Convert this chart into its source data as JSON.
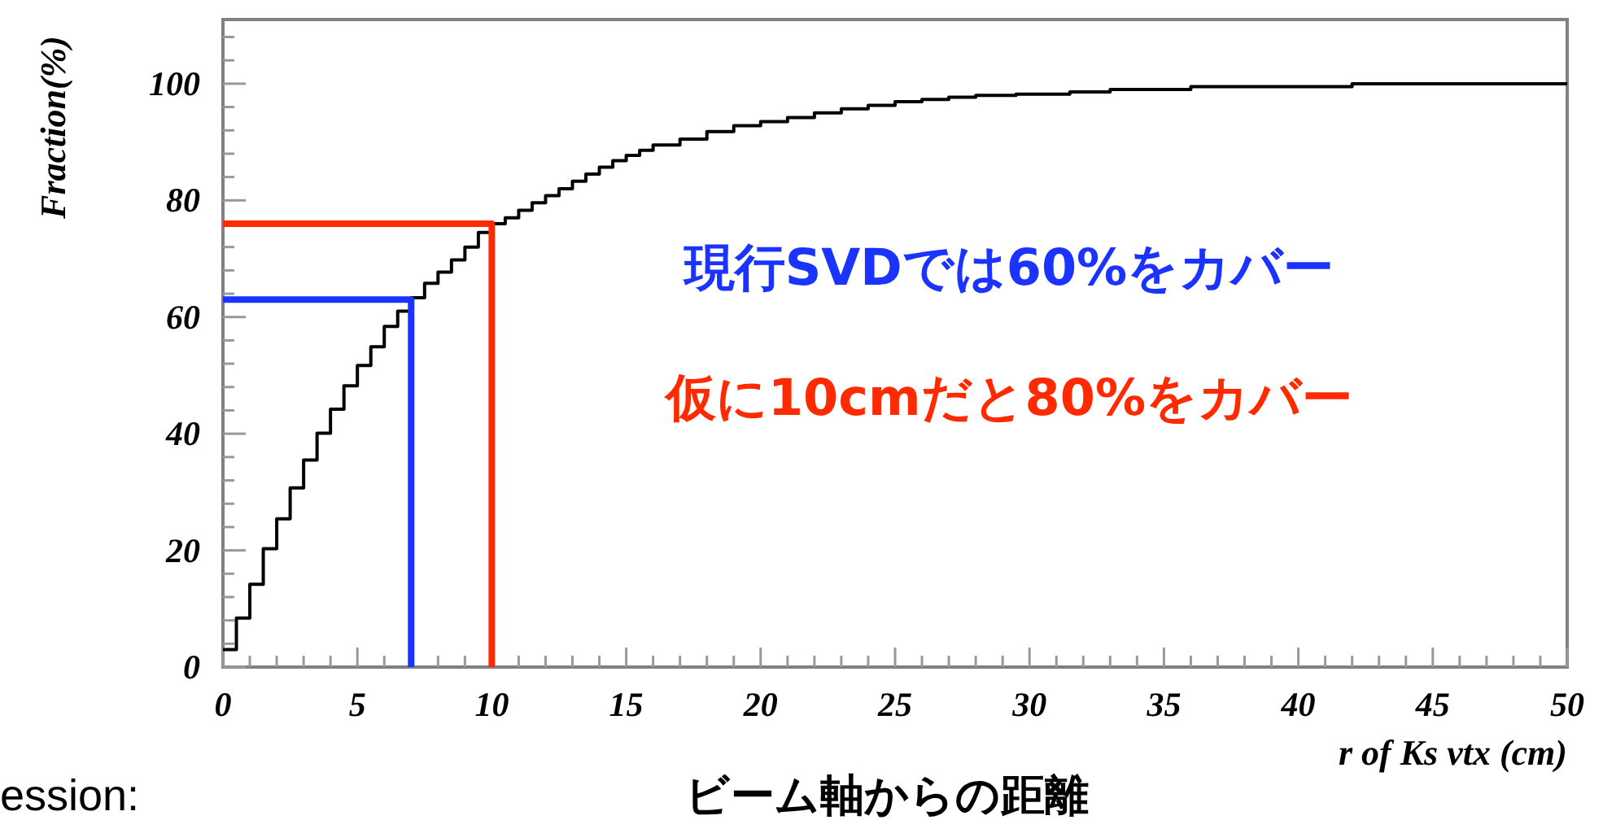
{
  "chart_data": {
    "type": "step",
    "xlabel": "r of Ks vtx (cm)",
    "ylabel": "Fraction(%)",
    "xlim": [
      0,
      50
    ],
    "ylim": [
      0,
      111
    ],
    "xticks": [
      0,
      {
        "value": 1,
        "label": null
      },
      {
        "value": 2,
        "label": null
      },
      {
        "value": 3,
        "label": null
      },
      {
        "value": 4,
        "label": null
      },
      5,
      {
        "value": 6,
        "label": null
      },
      {
        "value": 7,
        "label": null
      },
      {
        "value": 8,
        "label": null
      },
      {
        "value": 9,
        "label": null
      },
      10,
      {
        "value": 11,
        "label": null
      },
      {
        "value": 12,
        "label": null
      },
      {
        "value": 13,
        "label": null
      },
      {
        "value": 14,
        "label": null
      },
      15,
      {
        "value": 16,
        "label": null
      },
      {
        "value": 17,
        "label": null
      },
      {
        "value": 18,
        "label": null
      },
      {
        "value": 19,
        "label": null
      },
      20,
      {
        "value": 21,
        "label": null
      },
      {
        "value": 22,
        "label": null
      },
      {
        "value": 23,
        "label": null
      },
      {
        "value": 24,
        "label": null
      },
      25,
      {
        "value": 26,
        "label": null
      },
      {
        "value": 27,
        "label": null
      },
      {
        "value": 28,
        "label": null
      },
      {
        "value": 29,
        "label": null
      },
      30,
      {
        "value": 31,
        "label": null
      },
      {
        "value": 32,
        "label": null
      },
      {
        "value": 33,
        "label": null
      },
      {
        "value": 34,
        "label": null
      },
      35,
      {
        "value": 36,
        "label": null
      },
      {
        "value": 37,
        "label": null
      },
      {
        "value": 38,
        "label": null
      },
      {
        "value": 39,
        "label": null
      },
      40,
      {
        "value": 41,
        "label": null
      },
      {
        "value": 42,
        "label": null
      },
      {
        "value": 43,
        "label": null
      },
      {
        "value": 44,
        "label": null
      },
      45,
      {
        "value": 46,
        "label": null
      },
      {
        "value": 47,
        "label": null
      },
      {
        "value": 48,
        "label": null
      },
      {
        "value": 49,
        "label": null
      },
      50
    ],
    "yticks": [
      0,
      {
        "value": 4,
        "label": null
      },
      {
        "value": 8,
        "label": null
      },
      {
        "value": 12,
        "label": null
      },
      {
        "value": 16,
        "label": null
      },
      20,
      {
        "value": 24,
        "label": null
      },
      {
        "value": 28,
        "label": null
      },
      {
        "value": 32,
        "label": null
      },
      {
        "value": 36,
        "label": null
      },
      40,
      {
        "value": 44,
        "label": null
      },
      {
        "value": 48,
        "label": null
      },
      {
        "value": 52,
        "label": null
      },
      {
        "value": 56,
        "label": null
      },
      60,
      {
        "value": 64,
        "label": null
      },
      {
        "value": 68,
        "label": null
      },
      {
        "value": 72,
        "label": null
      },
      {
        "value": 76,
        "label": null
      },
      80,
      {
        "value": 84,
        "label": null
      },
      {
        "value": 88,
        "label": null
      },
      {
        "value": 92,
        "label": null
      },
      {
        "value": 96,
        "label": null
      },
      100,
      {
        "value": 104,
        "label": null
      },
      {
        "value": 108,
        "label": null
      }
    ],
    "series": [
      {
        "color": "#000000",
        "x": [
          0,
          0.5,
          1,
          1.5,
          2,
          2.5,
          3,
          3.5,
          4,
          4.5,
          5,
          5.5,
          6,
          6.5,
          7,
          7.5,
          8,
          8.5,
          9,
          9.5,
          10,
          10.5,
          11,
          11.5,
          12,
          12.5,
          13,
          13.5,
          14,
          14.5,
          15,
          15.5,
          16,
          17,
          18,
          19,
          20,
          21,
          22,
          23,
          24,
          25,
          26,
          27,
          28,
          29.5,
          31.5,
          33,
          36,
          42,
          50
        ],
        "values": [
          3,
          8.4,
          14.2,
          20.3,
          25.4,
          30.7,
          35.5,
          40.1,
          44.2,
          48.2,
          51.7,
          54.9,
          58.4,
          61,
          63.3,
          65.8,
          67.7,
          69.8,
          72,
          74.5,
          76,
          77,
          78.3,
          79.6,
          80.8,
          82,
          83.3,
          84.5,
          85.7,
          86.8,
          87.7,
          88.6,
          89.5,
          90.5,
          91.8,
          92.8,
          93.5,
          94.2,
          95,
          95.7,
          96.3,
          96.9,
          97.3,
          97.7,
          98,
          98.2,
          98.6,
          99,
          99.5,
          100,
          100
        ]
      },
      {
        "type": "line",
        "color": "#1a33ff",
        "x": [
          0,
          7,
          7
        ],
        "values": [
          63,
          63,
          0
        ]
      },
      {
        "type": "line",
        "color": "#ff2a00",
        "x": [
          0,
          10,
          10
        ],
        "values": [
          76,
          76,
          0
        ]
      }
    ],
    "annotations": [
      "現行SVDでは60%をカバー",
      "仮に10cmだと80%をカバー",
      "ビーム軸からの距離",
      "ession:"
    ]
  }
}
